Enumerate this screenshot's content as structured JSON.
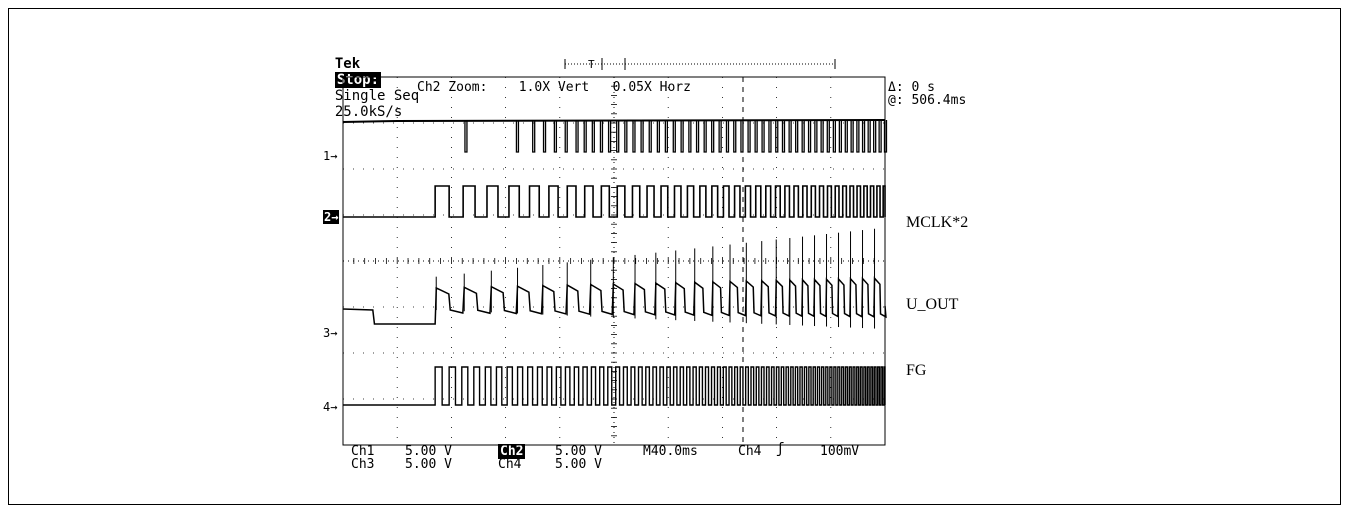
{
  "header": {
    "brand": "Tek",
    "state": "Stop:",
    "mode": "Single Seq",
    "rate": "25.0kS/s"
  },
  "zoom_info": "Ch2 Zoom:    1.0X Vert   0.05X Horz",
  "cursor": {
    "delta": "Δ: 0 s",
    "at": "@: 506.4ms"
  },
  "channel_markers": [
    "1",
    "2",
    "3",
    "4"
  ],
  "footer": {
    "ch1": "Ch1",
    "ch1_scale": "5.00 V",
    "ch2": "Ch2",
    "ch2_scale": "5.00 V",
    "ch3": "Ch3",
    "ch3_scale": "5.00 V",
    "ch4": "Ch4",
    "ch4_scale": "5.00 V",
    "timebase": "M40.0ms",
    "trigger_source": "Ch4",
    "trigger_level": "100mV"
  },
  "chart_data": {
    "type": "line",
    "grid": true,
    "grid_divisions": [
      10,
      8
    ],
    "series": [
      {
        "name": "",
        "channel": 1,
        "description_pattern": "pulse train, sparse low-going pulses becoming dense",
        "pulse_times_div": [
          2.25,
          3.2,
          3.5,
          3.7,
          3.9,
          4.1,
          4.3,
          4.45,
          4.6,
          4.75,
          4.9,
          5.05,
          5.2,
          5.35,
          5.5,
          5.65
        ]
      },
      {
        "name": "MCLK*2",
        "channel": 2,
        "description_pattern": "square wave starting at ~1.7 div, frequency increasing",
        "start_div": 1.7
      },
      {
        "name": "U_OUT",
        "channel": 3,
        "description_pattern": "stepped waveform with spikes, starting at ~1.7 div"
      },
      {
        "name": "FG",
        "channel": 4,
        "description_pattern": "square wave starting at ~1.7 div, frequency increasing to dense",
        "start_div": 1.7
      }
    ]
  },
  "colors": {
    "trace": "#000000",
    "grid": "#000000",
    "background": "#ffffff"
  }
}
